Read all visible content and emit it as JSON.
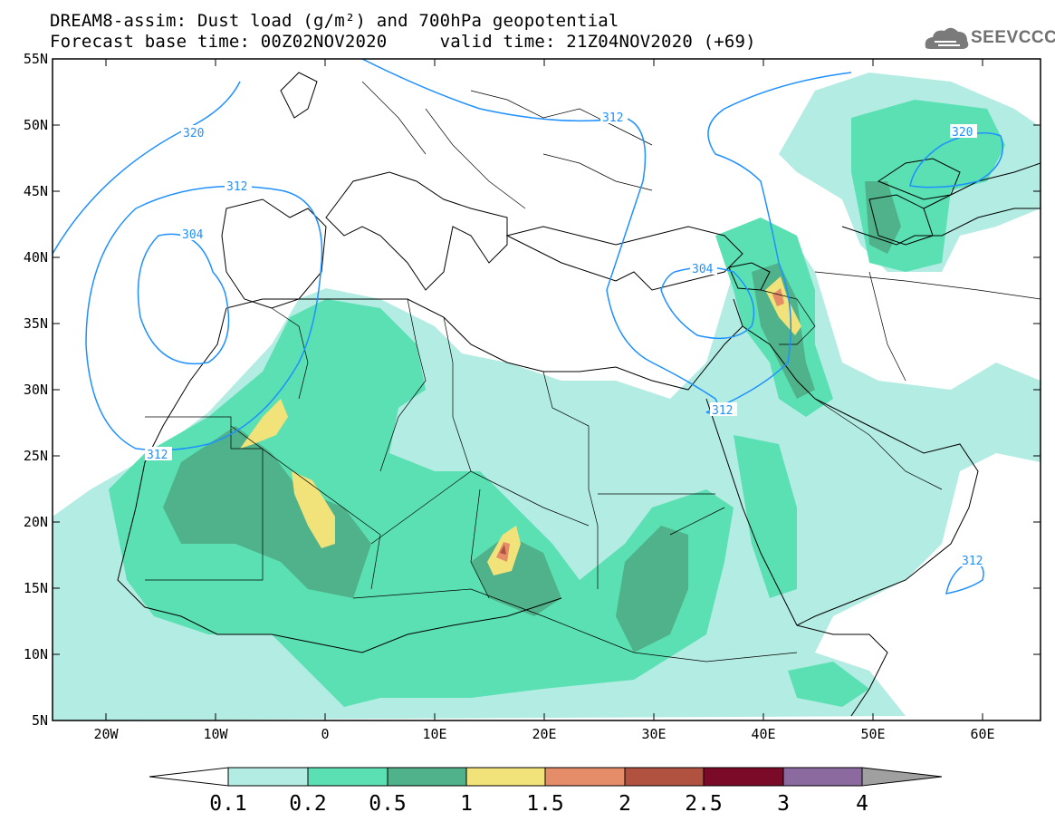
{
  "title": {
    "line1": "DREAM8-assim: Dust load (g/m²) and 700hPa geopotential",
    "line2": "Forecast base time: 00Z02NOV2020     valid time: 21Z04NOV2020 (+69)"
  },
  "logo": {
    "text": "SEEVCCC",
    "icon": "cloud-icon"
  },
  "map": {
    "lat_labels": [
      "55N",
      "50N",
      "45N",
      "40N",
      "35N",
      "30N",
      "25N",
      "20N",
      "15N",
      "10N",
      "5N"
    ],
    "lon_labels": [
      "20W",
      "10W",
      "0",
      "10E",
      "20E",
      "30E",
      "40E",
      "50E",
      "60E"
    ],
    "contour_labels": [
      "320",
      "312",
      "304",
      "312",
      "304",
      "312",
      "312",
      "320",
      "312"
    ],
    "contour_color": "#1e90ff"
  },
  "colorbar": {
    "levels": [
      "0.1",
      "0.2",
      "0.5",
      "1",
      "1.5",
      "2",
      "2.5",
      "3",
      "4"
    ],
    "colors": [
      "#ffffff",
      "#b3ece2",
      "#5be0b3",
      "#4fb28a",
      "#f1e27a",
      "#e58c68",
      "#b0523f",
      "#7a0a27",
      "#8b6aa0",
      "#a0a0a0"
    ]
  }
}
